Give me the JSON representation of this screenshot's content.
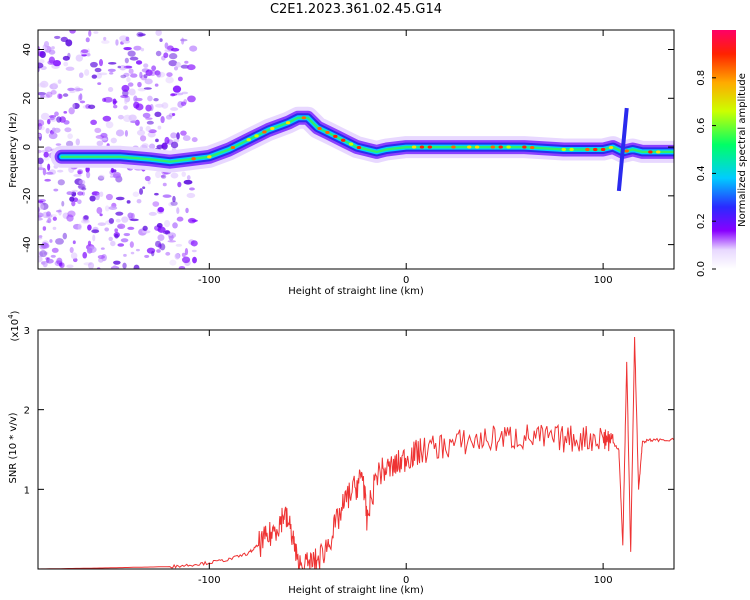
{
  "title": "C2E1.2023.361.02.45.G14",
  "chart_data": [
    {
      "type": "heatmap",
      "title": "C2E1.2023.361.02.45.G14",
      "xlabel": "Height of straight line (km)",
      "ylabel": "Frequency (Hz)",
      "xlim": [
        -187,
        136
      ],
      "ylim": [
        -50,
        48
      ],
      "xticks": [
        -100,
        0,
        100
      ],
      "xtick_labels": [
        "-100",
        "0",
        "100"
      ],
      "yticks": [
        -40,
        -20,
        0,
        20,
        40
      ],
      "ytick_labels": [
        "-40",
        "-20",
        "0",
        "20",
        "40"
      ],
      "ridge": {
        "x": [
          -175,
          -160,
          -145,
          -130,
          -120,
          -110,
          -100,
          -90,
          -80,
          -70,
          -60,
          -55,
          -50,
          -45,
          -40,
          -35,
          -30,
          -25,
          -20,
          -15,
          -10,
          0,
          10,
          20,
          40,
          60,
          80,
          100,
          105,
          110,
          115,
          120,
          136
        ],
        "freq": [
          -4,
          -4,
          -4,
          -5,
          -6,
          -5,
          -4,
          -1,
          3,
          7,
          10,
          12,
          12,
          8,
          6,
          4,
          2,
          0,
          -1,
          -2,
          -1,
          0,
          0,
          0,
          0,
          0,
          -1,
          -1,
          0,
          -2,
          -1,
          -2,
          -2
        ]
      },
      "colorbar": {
        "label": "Normalized spectral amplitude",
        "range": [
          0.0,
          1.0
        ],
        "ticks": [
          0.0,
          0.2,
          0.4,
          0.6,
          0.8
        ],
        "tick_labels": [
          "0.0",
          "0.2",
          "0.4",
          "0.6",
          "0.8"
        ]
      }
    },
    {
      "type": "line",
      "xlabel": "Height of straight line (km)",
      "ylabel": "SNR (10 * v/v)",
      "scale_label": "(x10",
      "scale_exp": "4",
      "scale_close": ")",
      "xlim": [
        -187,
        136
      ],
      "ylim": [
        0,
        3
      ],
      "xticks": [
        -100,
        0,
        100
      ],
      "xtick_labels": [
        "-100",
        "0",
        "100"
      ],
      "yticks": [
        1,
        2,
        3
      ],
      "ytick_labels": [
        "1",
        "2",
        "3"
      ],
      "series": [
        {
          "name": "SNR",
          "color": "#ee3333",
          "x": [
            -187,
            -160,
            -140,
            -120,
            -110,
            -100,
            -90,
            -80,
            -75,
            -70,
            -65,
            -62,
            -58,
            -55,
            -50,
            -45,
            -40,
            -35,
            -30,
            -25,
            -22,
            -20,
            -15,
            -10,
            -5,
            0,
            5,
            10,
            20,
            30,
            40,
            50,
            60,
            70,
            80,
            90,
            100,
            104,
            108,
            110,
            112,
            114,
            116,
            118,
            120,
            125,
            136
          ],
          "y": [
            0.0,
            0.01,
            0.02,
            0.03,
            0.05,
            0.08,
            0.12,
            0.2,
            0.3,
            0.4,
            0.55,
            0.7,
            0.45,
            0.05,
            0.05,
            0.1,
            0.3,
            0.6,
            0.9,
            1.05,
            1.2,
            0.6,
            1.2,
            1.25,
            1.3,
            1.4,
            1.45,
            1.5,
            1.55,
            1.6,
            1.62,
            1.65,
            1.66,
            1.64,
            1.63,
            1.64,
            1.65,
            1.62,
            1.5,
            0.3,
            2.6,
            0.2,
            2.9,
            1.0,
            1.6,
            1.62,
            1.62
          ]
        }
      ]
    }
  ]
}
